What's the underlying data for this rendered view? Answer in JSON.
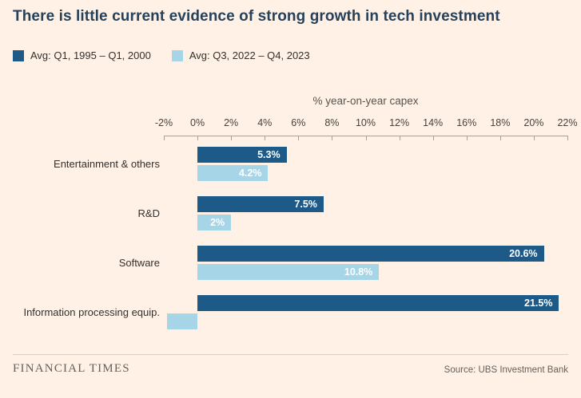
{
  "title": "There is little current evidence of strong growth in tech investment",
  "legend": [
    {
      "label": "Avg: Q1, 1995 – Q1, 2000",
      "color": "#1d5a87"
    },
    {
      "label": "Avg: Q3, 2022 – Q4, 2023",
      "color": "#a6d5e7"
    }
  ],
  "axis_title": "% year-on-year capex",
  "chart_data": {
    "type": "bar",
    "orientation": "horizontal",
    "title": "There is little current evidence of strong growth in tech investment",
    "xlabel": "% year-on-year capex",
    "categories": [
      "Entertainment & others",
      "R&D",
      "Software",
      "Information processing equip."
    ],
    "series": [
      {
        "name": "Avg: Q1, 1995 – Q1, 2000",
        "color": "#1d5a87",
        "values": [
          5.3,
          7.5,
          20.6,
          21.5
        ],
        "labels": [
          "5.3%",
          "7.5%",
          "20.6%",
          "21.5%"
        ]
      },
      {
        "name": "Avg: Q3, 2022 – Q4, 2023",
        "color": "#a6d5e7",
        "values": [
          4.2,
          2,
          10.8,
          -1.8
        ],
        "labels": [
          "4.2%",
          "2%",
          "10.8%",
          ""
        ]
      }
    ],
    "xlim": [
      -2,
      22
    ],
    "tick_step": 2,
    "tick_labels": [
      "-2%",
      "0%",
      "2%",
      "4%",
      "6%",
      "8%",
      "10%",
      "12%",
      "14%",
      "16%",
      "18%",
      "20%",
      "22%"
    ],
    "grid": false,
    "legend_position": "top-left"
  },
  "footer": {
    "brand": "FINANCIAL TIMES",
    "source": "Source: UBS Investment Bank"
  }
}
